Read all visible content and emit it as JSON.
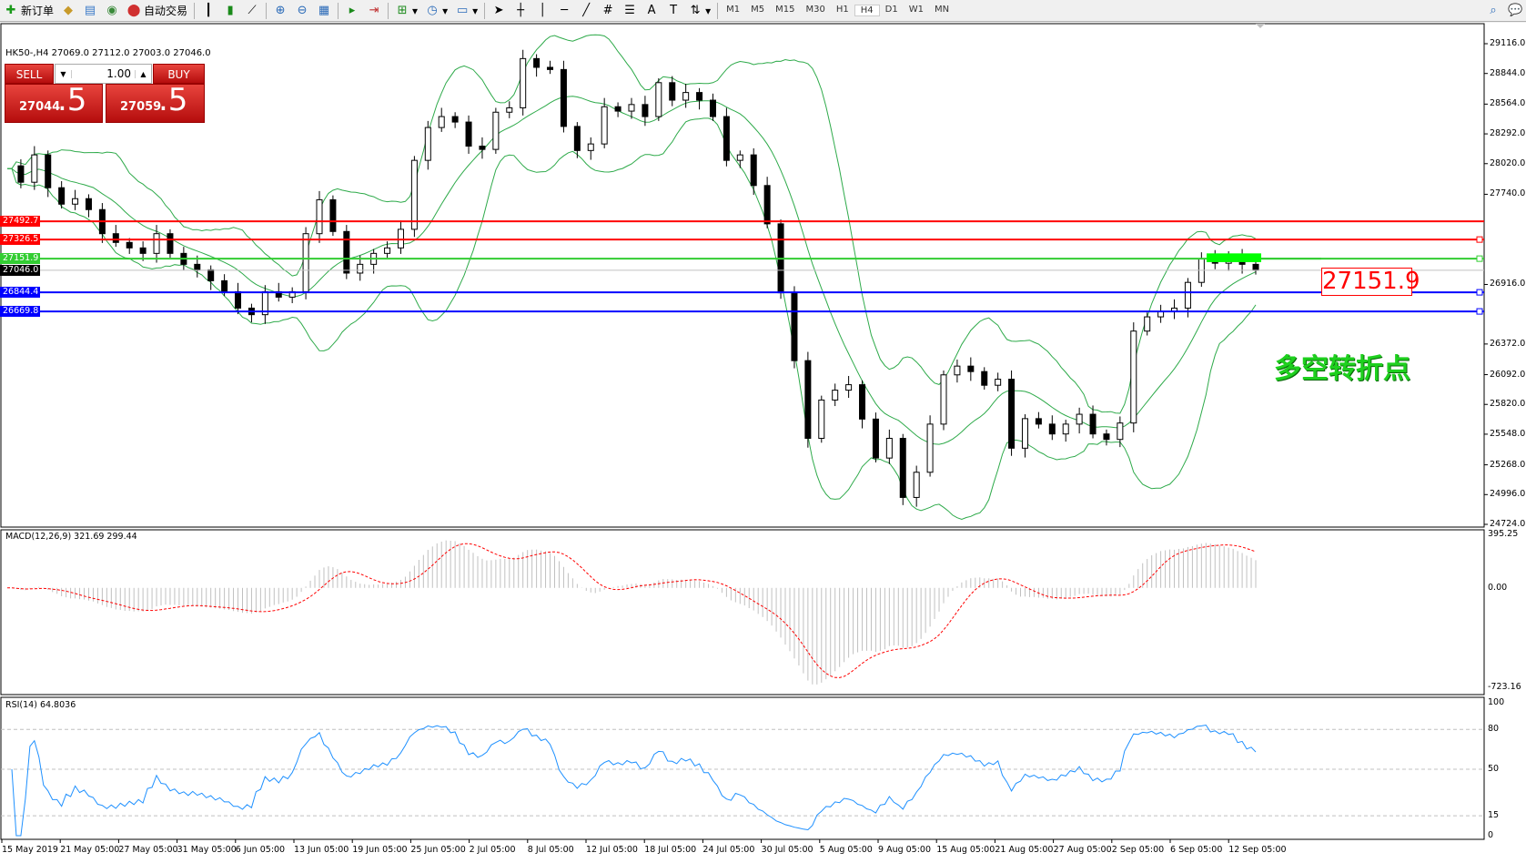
{
  "toolbar": {
    "new_order": "新订单",
    "auto_trading": "自动交易",
    "timeframes": [
      "M1",
      "M5",
      "M15",
      "M30",
      "H1",
      "H4",
      "D1",
      "W1",
      "MN"
    ],
    "active_timeframe": "H4"
  },
  "chart": {
    "header": "HK50-,H4  27069.0 27112.0 27003.0 27046.0",
    "one_click": {
      "sell_label": "SELL",
      "buy_label": "BUY",
      "lot": "1.00",
      "sell_big": "27044",
      "sell_small": ".5",
      "buy_big": "27059",
      "buy_small": ".5"
    },
    "price_axis": [
      "29116.0",
      "28844.0",
      "28564.0",
      "28292.0",
      "28020.0",
      "27740.0",
      "26916.0",
      "26372.0",
      "26092.0",
      "25820.0",
      "25548.0",
      "25268.0",
      "24996.0",
      "24724.0"
    ],
    "price_range": [
      24724,
      29116
    ],
    "levels": [
      {
        "price": "27492.7",
        "color": "#ff0000"
      },
      {
        "price": "27326.5",
        "color": "#ff0000"
      },
      {
        "price": "27151.9",
        "color": "#32cd32"
      },
      {
        "price": "27046.0",
        "color": "#000000",
        "current": true
      },
      {
        "price": "26844.4",
        "color": "#0000ff"
      },
      {
        "price": "26669.8",
        "color": "#0000ff"
      }
    ],
    "big_label": "27151.9",
    "annotation": "多空转折点",
    "closes": [
      28000,
      27850,
      28100,
      27800,
      27650,
      27700,
      27600,
      27380,
      27300,
      27250,
      27200,
      27380,
      27200,
      27100,
      27050,
      26950,
      26850,
      26700,
      26640,
      26850,
      26800,
      26850,
      27380,
      27690,
      27400,
      27020,
      27100,
      27200,
      27250,
      27420,
      28050,
      28350,
      28450,
      28400,
      28180,
      28150,
      28490,
      28530,
      28980,
      28900,
      28880,
      28360,
      28140,
      28200,
      28540,
      28500,
      28560,
      28450,
      28760,
      28600,
      28670,
      28600,
      28450,
      28050,
      28100,
      27820,
      27470,
      26840,
      26220,
      25510,
      25860,
      25950,
      26000,
      25686,
      25330,
      25510,
      24970,
      25200,
      25640,
      26090,
      26170,
      26120,
      25995,
      26050,
      25420,
      25690,
      25640,
      25550,
      25640,
      25730,
      25550,
      25500,
      25650,
      26490,
      26620,
      26670,
      26700,
      26935,
      27150,
      27110,
      27180,
      27100,
      27046
    ],
    "bollinger_label": "",
    "time_axis": [
      "15 May 2019",
      "21 May 05:00",
      "27 May 05:00",
      "31 May 05:00",
      "6 Jun 05:00",
      "13 Jun 05:00",
      "19 Jun 05:00",
      "25 Jun 05:00",
      "2 Jul 05:00",
      "8 Jul 05:00",
      "12 Jul 05:00",
      "18 Jul 05:00",
      "24 Jul 05:00",
      "30 Jul 05:00",
      "5 Aug 05:00",
      "9 Aug 05:00",
      "15 Aug 05:00",
      "21 Aug 05:00",
      "27 Aug 05:00",
      "2 Sep 05:00",
      "6 Sep 05:00",
      "12 Sep 05:00"
    ]
  },
  "macd": {
    "label": "MACD(12,26,9) 321.69 299.44",
    "axis": [
      "395.25",
      "0.00",
      "-723.16"
    ],
    "range": [
      -723.16,
      395.25
    ],
    "hist_color": "#c0c0c0",
    "signal_color": "#ff0000"
  },
  "rsi": {
    "label": "RSI(14) 64.8036",
    "axis": [
      "100",
      "80",
      "50",
      "15",
      "0"
    ],
    "levels": [
      80,
      50,
      15
    ],
    "color": "#1e90ff"
  }
}
